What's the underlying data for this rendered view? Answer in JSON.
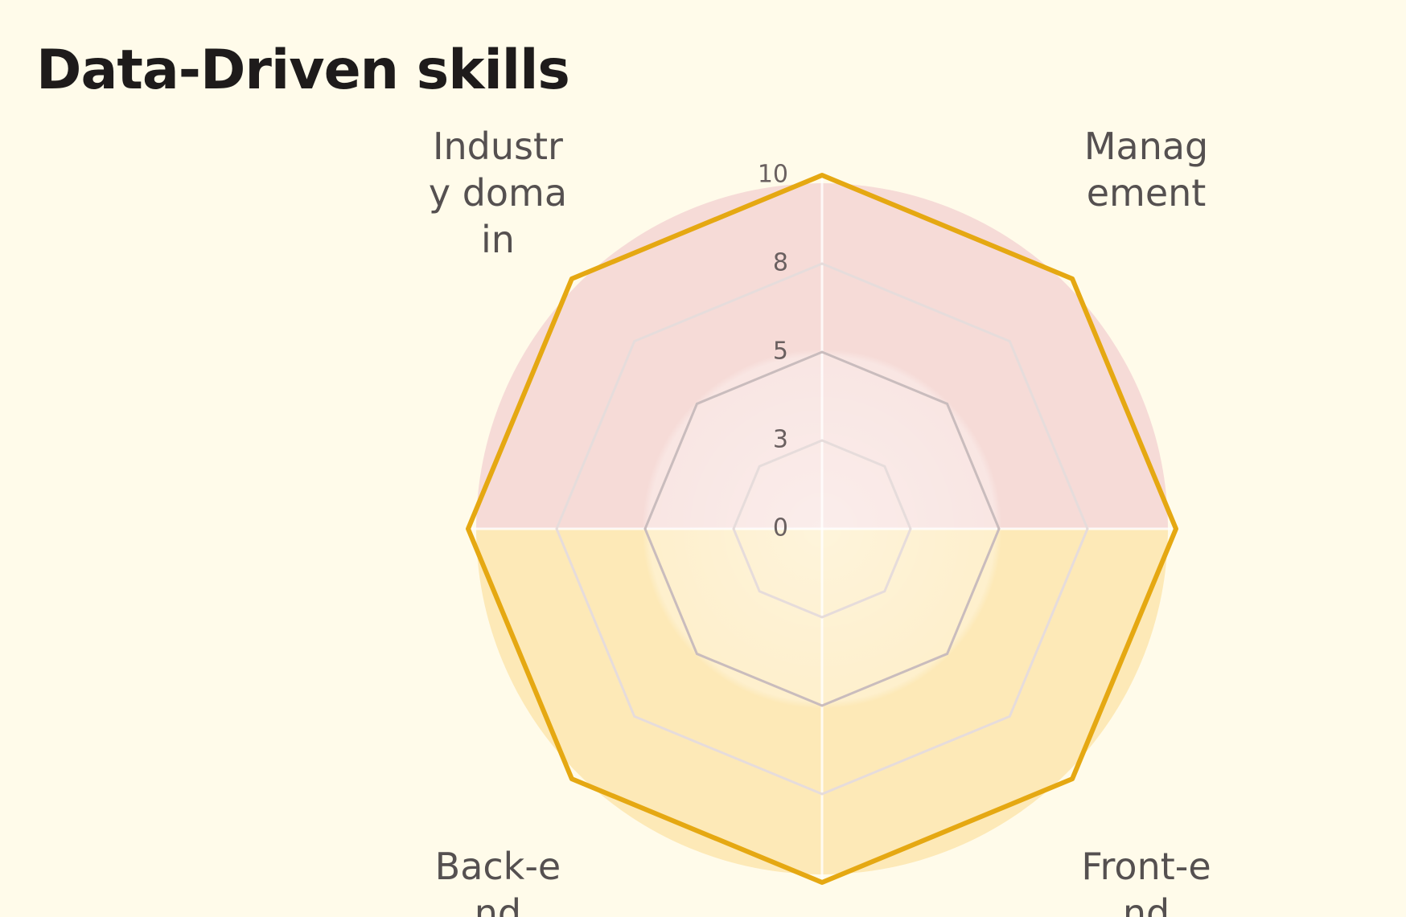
{
  "chart_data": {
    "type": "radar",
    "title": "Data-Driven skills",
    "quadrants": [
      {
        "label": "Management",
        "color": "#f6dbd7"
      },
      {
        "label": "Front-end",
        "color": "#fde9b7"
      },
      {
        "label": "Back-end",
        "color": "#fde9b7"
      },
      {
        "label": "Industry domain",
        "color": "#f6dbd7"
      }
    ],
    "series": [
      {
        "color": "#e5a812",
        "values": [
          10,
          10,
          10,
          10,
          10,
          10,
          10,
          10
        ]
      }
    ],
    "ylim": [
      0,
      10
    ],
    "yticks": [
      0,
      {
        "value": 2.5,
        "label": "3"
      },
      5,
      {
        "value": 7.5,
        "label": "8"
      },
      10
    ]
  }
}
